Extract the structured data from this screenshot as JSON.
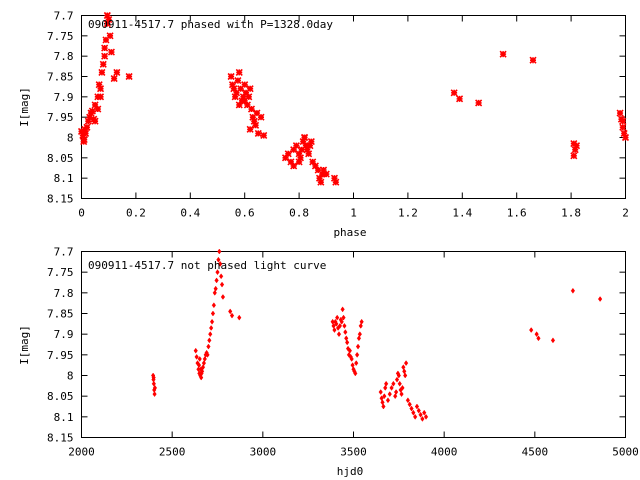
{
  "figure": {
    "background": "#ffffff",
    "marker_color": "#ff0000"
  },
  "chart_data": [
    {
      "type": "scatter",
      "title": "090911-4517.7 phased with P=1328.0day",
      "xlabel": "phase",
      "ylabel": "I[mag]",
      "xlim": [
        0,
        2
      ],
      "ylim": [
        8.15,
        7.7
      ],
      "y_inverted": true,
      "grid": false,
      "x_ticks": [
        "0",
        "0.2",
        "0.4",
        "0.6",
        "0.8",
        "1",
        "1.2",
        "1.4",
        "1.6",
        "1.8",
        "2"
      ],
      "y_ticks": [
        "7.7",
        "7.75",
        "7.8",
        "7.85",
        "7.9",
        "7.95",
        "8",
        "8.05",
        "8.1",
        "8.15"
      ],
      "marker": "x-cross",
      "series": [
        {
          "x": [
            0.0,
            0.005,
            0.01,
            0.015,
            0.02,
            0.025,
            0.03,
            0.04,
            0.05,
            0.06,
            0.07,
            0.075,
            0.08,
            0.085,
            0.085,
            0.09,
            0.095,
            0.095,
            0.1,
            0.105,
            0.11,
            0.12,
            0.05,
            0.06,
            0.07,
            0.065,
            0.035,
            0.045,
            0.012,
            0.008,
            0.13,
            0.175,
            0.55,
            0.555,
            0.56,
            0.565,
            0.57,
            0.575,
            0.58,
            0.585,
            0.59,
            0.595,
            0.6,
            0.605,
            0.61,
            0.615,
            0.62,
            0.625,
            0.63,
            0.635,
            0.64,
            0.645,
            0.65,
            0.66,
            0.67,
            0.58,
            0.6,
            0.62,
            0.75,
            0.76,
            0.77,
            0.78,
            0.79,
            0.8,
            0.805,
            0.81,
            0.815,
            0.82,
            0.825,
            0.83,
            0.835,
            0.84,
            0.845,
            0.85,
            0.86,
            0.87,
            0.875,
            0.88,
            0.885,
            0.89,
            0.9,
            0.93,
            0.935,
            0.8,
            0.82,
            0.78,
            1.37,
            1.39,
            1.46,
            1.55,
            1.66,
            1.81,
            1.815,
            1.82,
            1.81,
            1.98,
            1.985,
            1.99,
            1.995,
            2.0,
            1.99
          ],
          "y": [
            7.985,
            7.995,
            8.005,
            7.99,
            7.975,
            7.96,
            7.95,
            7.935,
            7.92,
            7.9,
            7.88,
            7.84,
            7.82,
            7.8,
            7.78,
            7.76,
            7.72,
            7.7,
            7.71,
            7.75,
            7.79,
            7.855,
            7.96,
            7.93,
            7.9,
            7.87,
            7.94,
            7.955,
            7.98,
            8.01,
            7.84,
            7.85,
            7.85,
            7.87,
            7.88,
            7.9,
            7.89,
            7.86,
            7.84,
            7.88,
            7.91,
            7.9,
            7.87,
            7.89,
            7.92,
            7.9,
            7.88,
            7.93,
            7.95,
            7.96,
            7.97,
            7.94,
            7.99,
            7.95,
            7.995,
            7.92,
            7.91,
            7.98,
            8.05,
            8.04,
            8.06,
            8.03,
            8.02,
            8.04,
            8.05,
            8.03,
            8.01,
            8.0,
            8.02,
            8.03,
            8.04,
            8.02,
            8.01,
            8.06,
            8.07,
            8.08,
            8.1,
            8.11,
            8.09,
            8.08,
            8.09,
            8.1,
            8.11,
            8.06,
            8.0,
            8.07,
            7.89,
            7.905,
            7.915,
            7.795,
            7.81,
            8.015,
            8.03,
            8.02,
            8.045,
            7.94,
            7.955,
            7.975,
            7.99,
            8.0,
            7.96
          ]
        }
      ]
    },
    {
      "type": "scatter",
      "title": "090911-4517.7 not phased light curve",
      "xlabel": "hjd0",
      "ylabel": "I[mag]",
      "xlim": [
        2000,
        5000
      ],
      "ylim": [
        8.15,
        7.7
      ],
      "y_inverted": true,
      "grid": false,
      "x_ticks": [
        "2000",
        "2500",
        "3000",
        "3500",
        "4000",
        "4500",
        "5000"
      ],
      "y_ticks": [
        "7.7",
        "7.75",
        "7.8",
        "7.85",
        "7.9",
        "7.95",
        "8",
        "8.05",
        "8.1",
        "8.15"
      ],
      "marker": "small-diamond",
      "series": [
        {
          "x": [
            2395,
            2397,
            2399,
            2401,
            2403,
            2405,
            2398,
            2630,
            2635,
            2640,
            2645,
            2650,
            2655,
            2660,
            2665,
            2670,
            2675,
            2680,
            2685,
            2690,
            2695,
            2700,
            2705,
            2710,
            2715,
            2720,
            2725,
            2730,
            2735,
            2740,
            2745,
            2750,
            2755,
            2760,
            2765,
            2770,
            2775,
            2780,
            2648,
            2652,
            2658,
            2662,
            2820,
            2830,
            2870,
            3385,
            3390,
            3395,
            3400,
            3405,
            3410,
            3415,
            3420,
            3425,
            3430,
            3435,
            3440,
            3445,
            3450,
            3455,
            3460,
            3465,
            3470,
            3475,
            3480,
            3485,
            3490,
            3495,
            3500,
            3505,
            3510,
            3515,
            3520,
            3525,
            3530,
            3535,
            3540,
            3545,
            3650,
            3655,
            3660,
            3665,
            3670,
            3675,
            3680,
            3690,
            3700,
            3710,
            3720,
            3730,
            3735,
            3740,
            3745,
            3750,
            3755,
            3760,
            3765,
            3770,
            3775,
            3780,
            3785,
            3790,
            3800,
            3810,
            3820,
            3830,
            3840,
            3850,
            3860,
            3870,
            3880,
            3890,
            3900,
            4480,
            4510,
            4520,
            4600,
            4710,
            4860
          ],
          "y": [
            8.0,
            8.01,
            8.02,
            8.035,
            8.045,
            8.03,
            8.005,
            7.94,
            7.955,
            7.97,
            7.985,
            7.995,
            8.0,
            8.005,
            7.99,
            7.98,
            7.97,
            7.96,
            7.95,
            7.945,
            7.95,
            7.93,
            7.915,
            7.9,
            7.885,
            7.87,
            7.85,
            7.83,
            7.8,
            7.79,
            7.77,
            7.75,
            7.72,
            7.7,
            7.73,
            7.76,
            7.78,
            7.81,
            7.975,
            7.96,
            7.985,
            7.995,
            7.845,
            7.855,
            7.86,
            7.87,
            7.88,
            7.89,
            7.87,
            7.875,
            7.86,
            7.885,
            7.9,
            7.88,
            7.865,
            7.87,
            7.84,
            7.86,
            7.88,
            7.895,
            7.91,
            7.92,
            7.935,
            7.95,
            7.94,
            7.955,
            7.96,
            7.975,
            7.985,
            7.99,
            7.995,
            7.97,
            7.95,
            7.93,
            7.91,
            7.9,
            7.88,
            7.87,
            8.04,
            8.055,
            8.065,
            8.075,
            8.05,
            8.03,
            8.02,
            8.06,
            8.045,
            8.03,
            8.02,
            8.05,
            8.04,
            8.01,
            7.995,
            8.0,
            8.02,
            8.035,
            8.045,
            8.03,
            7.98,
            7.99,
            8.0,
            7.97,
            8.06,
            8.07,
            8.08,
            8.09,
            8.1,
            8.075,
            8.085,
            8.095,
            8.105,
            8.09,
            8.1,
            7.89,
            7.9,
            7.91,
            7.915,
            7.795,
            7.815
          ]
        }
      ]
    }
  ]
}
